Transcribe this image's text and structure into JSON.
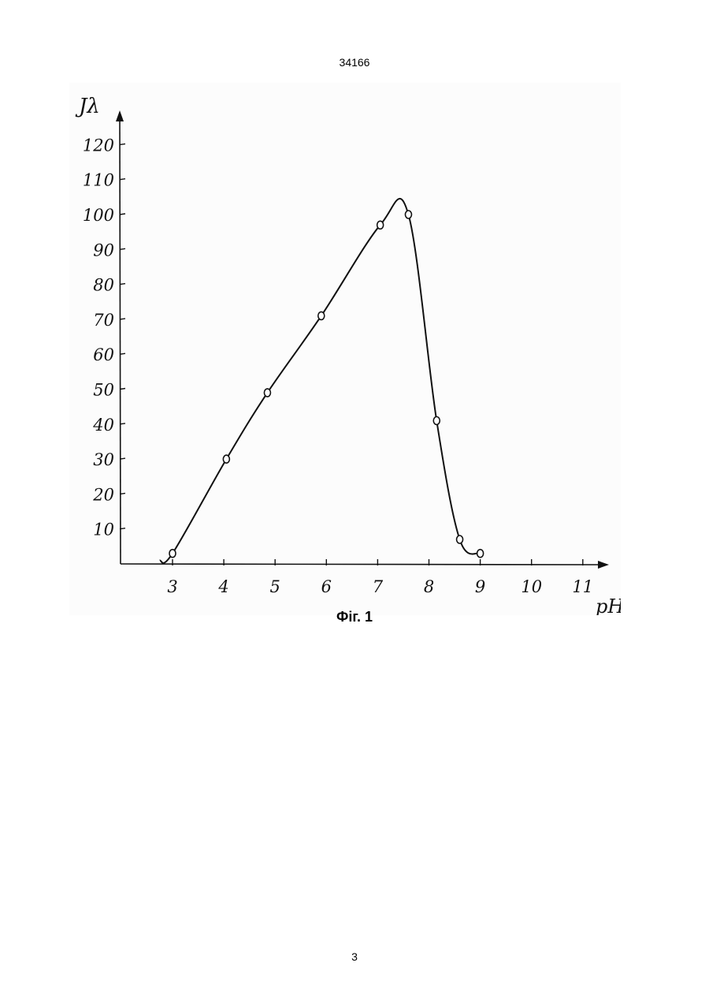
{
  "page": {
    "header": "34166",
    "footer": "3",
    "caption": "Фіг. 1"
  },
  "chart_data": {
    "type": "line",
    "title": "",
    "xlabel": "pH",
    "ylabel": "Jλ",
    "xlim": [
      2,
      11.5
    ],
    "ylim": [
      0,
      125
    ],
    "x_ticks": [
      3,
      4,
      5,
      6,
      7,
      8,
      9,
      10,
      11
    ],
    "y_ticks": [
      10,
      20,
      30,
      40,
      50,
      60,
      70,
      80,
      90,
      100,
      110,
      120
    ],
    "grid": false,
    "legend": "none",
    "series": [
      {
        "points": [
          {
            "x": 3.0,
            "y": 3
          },
          {
            "x": 4.05,
            "y": 30
          },
          {
            "x": 4.85,
            "y": 49
          },
          {
            "x": 5.9,
            "y": 71
          },
          {
            "x": 7.05,
            "y": 97
          },
          {
            "x": 7.6,
            "y": 100
          },
          {
            "x": 8.15,
            "y": 41
          },
          {
            "x": 8.6,
            "y": 7
          },
          {
            "x": 9.0,
            "y": 3
          }
        ],
        "curve_start": {
          "x": 2.75,
          "y": 1
        },
        "line_color": "#111111"
      }
    ]
  }
}
